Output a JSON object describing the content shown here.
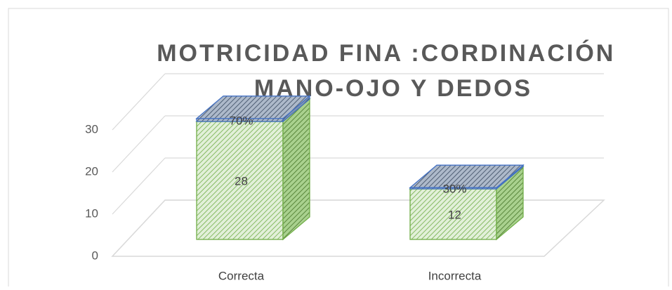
{
  "chart_data": {
    "type": "bar3d_stacked",
    "title": [
      "MOTRICIDAD FINA :CORDINACIÓN",
      "MANO-OJO Y DEDOS"
    ],
    "categories": [
      "Correcta",
      "Incorrecta"
    ],
    "series": [
      {
        "color": "#70ad47",
        "values": [
          28,
          12
        ]
      },
      {
        "color": "#4472c4",
        "values": [
          0.7,
          0.3
        ],
        "value_labels": [
          "70%",
          "30%"
        ]
      }
    ],
    "ylim": [
      0,
      30
    ],
    "yticks": [
      0,
      10,
      20,
      30
    ],
    "grid": true
  }
}
